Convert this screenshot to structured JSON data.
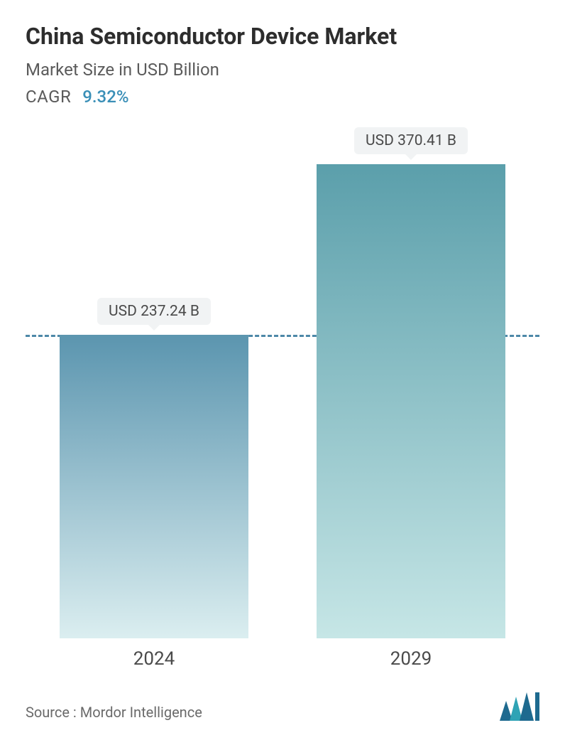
{
  "header": {
    "title": "China Semiconductor Device Market",
    "subtitle": "Market Size in USD Billion",
    "cagr_label": "CAGR",
    "cagr_value": "9.32%"
  },
  "chart": {
    "type": "bar",
    "background_color": "#ffffff",
    "reference_line": {
      "at_value": 237.24,
      "color": "#4d88a8",
      "dash": "6 6",
      "width": 3
    },
    "ylim_max": 400,
    "bars": [
      {
        "category": "2024",
        "value": 237.24,
        "label": "USD 237.24 B",
        "gradient_top": "#5b95af",
        "gradient_bottom": "#dbeef0"
      },
      {
        "category": "2029",
        "value": 370.41,
        "label": "USD 370.41 B",
        "gradient_top": "#5b9fab",
        "gradient_bottom": "#c6e6e6"
      }
    ],
    "bar_width_pct": 80,
    "label_bg": "#f1f3f4",
    "label_color": "#4a4a4a",
    "label_fontsize": 21,
    "axis_fontsize": 26,
    "axis_color": "#4a4a4a"
  },
  "footer": {
    "source_text": "Source :  Mordor Intelligence",
    "logo_colors": {
      "primary": "#1e6a8f",
      "accent": "#2fa3b5"
    }
  },
  "typography": {
    "title_fontsize": 32,
    "title_weight": 700,
    "title_color": "#2d2d2d",
    "subtitle_fontsize": 24,
    "subtitle_color": "#5b5b5b",
    "cagr_value_color": "#3a8fb7"
  }
}
